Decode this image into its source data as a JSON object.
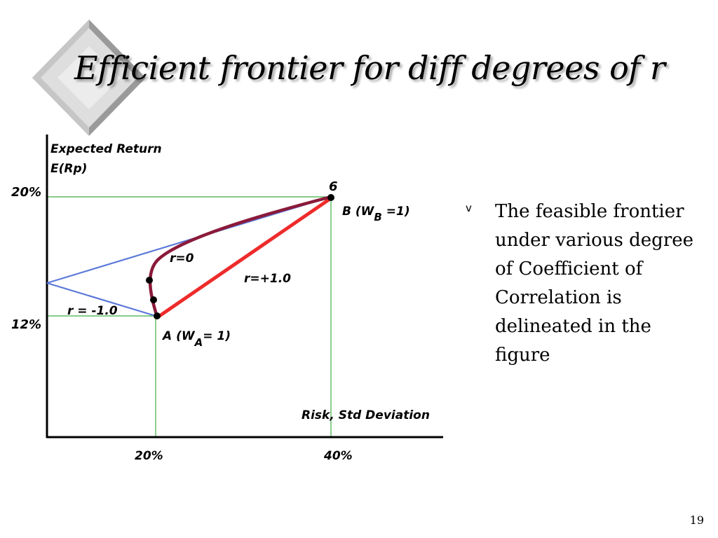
{
  "slide": {
    "title": "Efficient frontier for diff degrees of r",
    "page_number": "19"
  },
  "bullets": [
    {
      "marker": "v",
      "text": "The feasible frontier  under various degree of Coefficient of Correlation is delineated in the figure"
    }
  ],
  "figure": {
    "y_axis_label_line1": "Expected Return",
    "y_axis_label_line2": "E(Rp)",
    "x_axis_label": "Risk, Std Deviation",
    "y_tick_high": "20%",
    "y_tick_low": "12%",
    "x_tick_left": "20%",
    "x_tick_right": "40%",
    "top_point_label": "6",
    "point_b_label_main": "B (W",
    "point_b_label_sub": "B",
    "point_b_label_end": " =1)",
    "point_a_label_main": "A (W",
    "point_a_label_sub": "A",
    "point_a_label_end": "= 1)",
    "curve_label_zero": "r=0",
    "curve_label_plus_one": "r=+1.0",
    "curve_label_minus_one": "r = -1.0",
    "colors": {
      "minus_one_line": "#5b79d9",
      "plus_one_line": "#ee2b2b",
      "zero_curve": "#8b1a3a",
      "guide_lines": "#3fae46",
      "axes": "#000000"
    }
  }
}
